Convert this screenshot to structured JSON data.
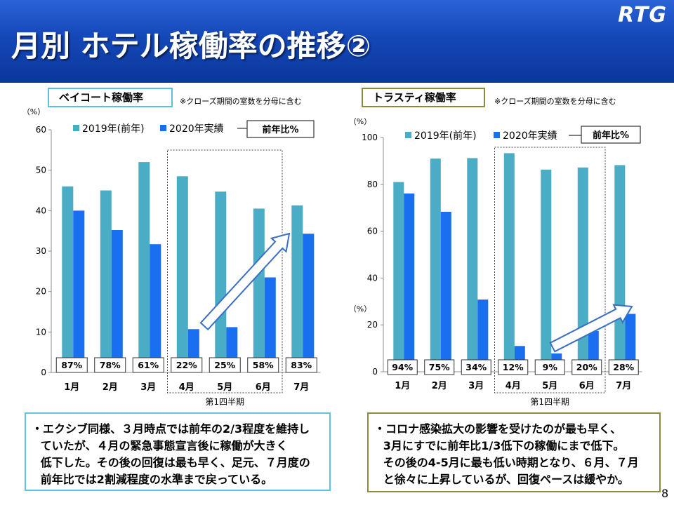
{
  "header": {
    "title": "月別 ホテル稼働率の推移②",
    "logo": "RTG"
  },
  "chart_data": [
    {
      "type": "bar",
      "title": "ベイコート稼働率",
      "note": "※クローズ期間の室数を分母に含む",
      "unit_labels": [
        "（%）"
      ],
      "categories": [
        "1月",
        "2月",
        "3月",
        "4月",
        "5月",
        "6月",
        "7月"
      ],
      "series": [
        {
          "name": "2019年(前年)",
          "values": [
            46,
            45,
            52,
            48.5,
            44.7,
            40.5,
            41.3
          ],
          "color": "#4bacc6"
        },
        {
          "name": "2020年実績",
          "values": [
            40,
            35.2,
            31.7,
            10.7,
            11.2,
            23.5,
            34.3
          ],
          "color": "#1a6ff0"
        }
      ],
      "ratio_legend": "前年比%",
      "ratios": [
        "87%",
        "78%",
        "61%",
        "22%",
        "25%",
        "58%",
        "83%"
      ],
      "ylim": [
        0,
        60
      ],
      "yticks": [
        0,
        10,
        20,
        30,
        40,
        50,
        60
      ],
      "highlight": {
        "label": "第1四半期",
        "categories": [
          "4月",
          "5月",
          "6月"
        ]
      },
      "grid": false,
      "legend": "top",
      "label_border_color": "#5bc0de"
    },
    {
      "type": "bar",
      "title": "トラスティ稼働率",
      "note": "※クローズ期間の室数を分母に含む",
      "unit_labels": [
        "（%）",
        "（%）"
      ],
      "categories": [
        "1月",
        "2月",
        "3月",
        "4月",
        "5月",
        "6月",
        "7月"
      ],
      "series": [
        {
          "name": "2019年(前年)",
          "values": [
            81,
            91,
            91.2,
            93.3,
            86.3,
            87.2,
            88.2
          ],
          "color": "#4bacc6"
        },
        {
          "name": "2020年実績",
          "values": [
            76.1,
            68.3,
            30.8,
            11,
            7.8,
            17.4,
            24.7
          ],
          "color": "#1a6ff0"
        }
      ],
      "ratio_legend": "前年比%",
      "ratios": [
        "94%",
        "75%",
        "34%",
        "12%",
        "9%",
        "20%",
        "28%"
      ],
      "ylim": [
        0,
        100
      ],
      "yticks": [
        0,
        20,
        40,
        60,
        80,
        100
      ],
      "highlight": {
        "label": "第1四半期",
        "categories": [
          "4月",
          "5月",
          "6月"
        ]
      },
      "grid": false,
      "legend": "top",
      "label_border_color": "#8b8b3d"
    }
  ],
  "comments": [
    {
      "lines": [
        "・エクシブ同様、３月時点では前年の2/3程度を維持し",
        "ていたが、４月の緊急事態宣言後に稼働が大きく",
        "低下した。その後の回復は最も早く、足元、７月度の",
        "前年比では2割減程度の水準まで戻っている。"
      ],
      "border_color": "#5fc3e4"
    },
    {
      "lines": [
        "・コロナ感染拡大の影響を受けたのが最も早く、",
        "3月にすでに前年比1/3低下の稼働にまで低下。",
        "その後の4-5月に最も低い時期となり、６月、７月",
        "と徐々に上昇しているが、回復ペースは緩やか。"
      ],
      "border_color": "#8c8c3a"
    }
  ],
  "page_number": "8"
}
